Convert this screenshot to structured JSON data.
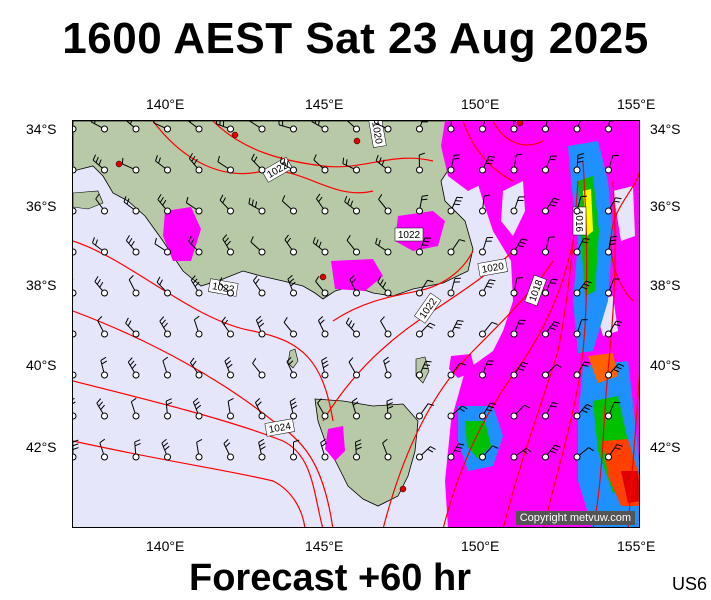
{
  "title": "1600 AEST Sat 23 Aug 2025",
  "footer": "Forecast +60 hr",
  "code": "US6",
  "copyright": "Copyright metvuw.com",
  "axes": {
    "lon_ticks": [
      "140°E",
      "145°E",
      "150°E",
      "155°E"
    ],
    "lat_ticks": [
      "34°S",
      "36°S",
      "38°S",
      "40°S",
      "42°S"
    ]
  },
  "isobar_labels": [
    "1022",
    "1022",
    "1020",
    "1020",
    "1022",
    "1024",
    "1022",
    "1018",
    "1016"
  ],
  "colors": {
    "ocean": "#e6e6fa",
    "land": "#b8c9a8",
    "isobar": "#ff0000",
    "precip_light": "#ff00ff",
    "precip_medium": "#1e90ff",
    "precip_heavy": "#00c000",
    "precip_extreme": "#ff4000"
  }
}
